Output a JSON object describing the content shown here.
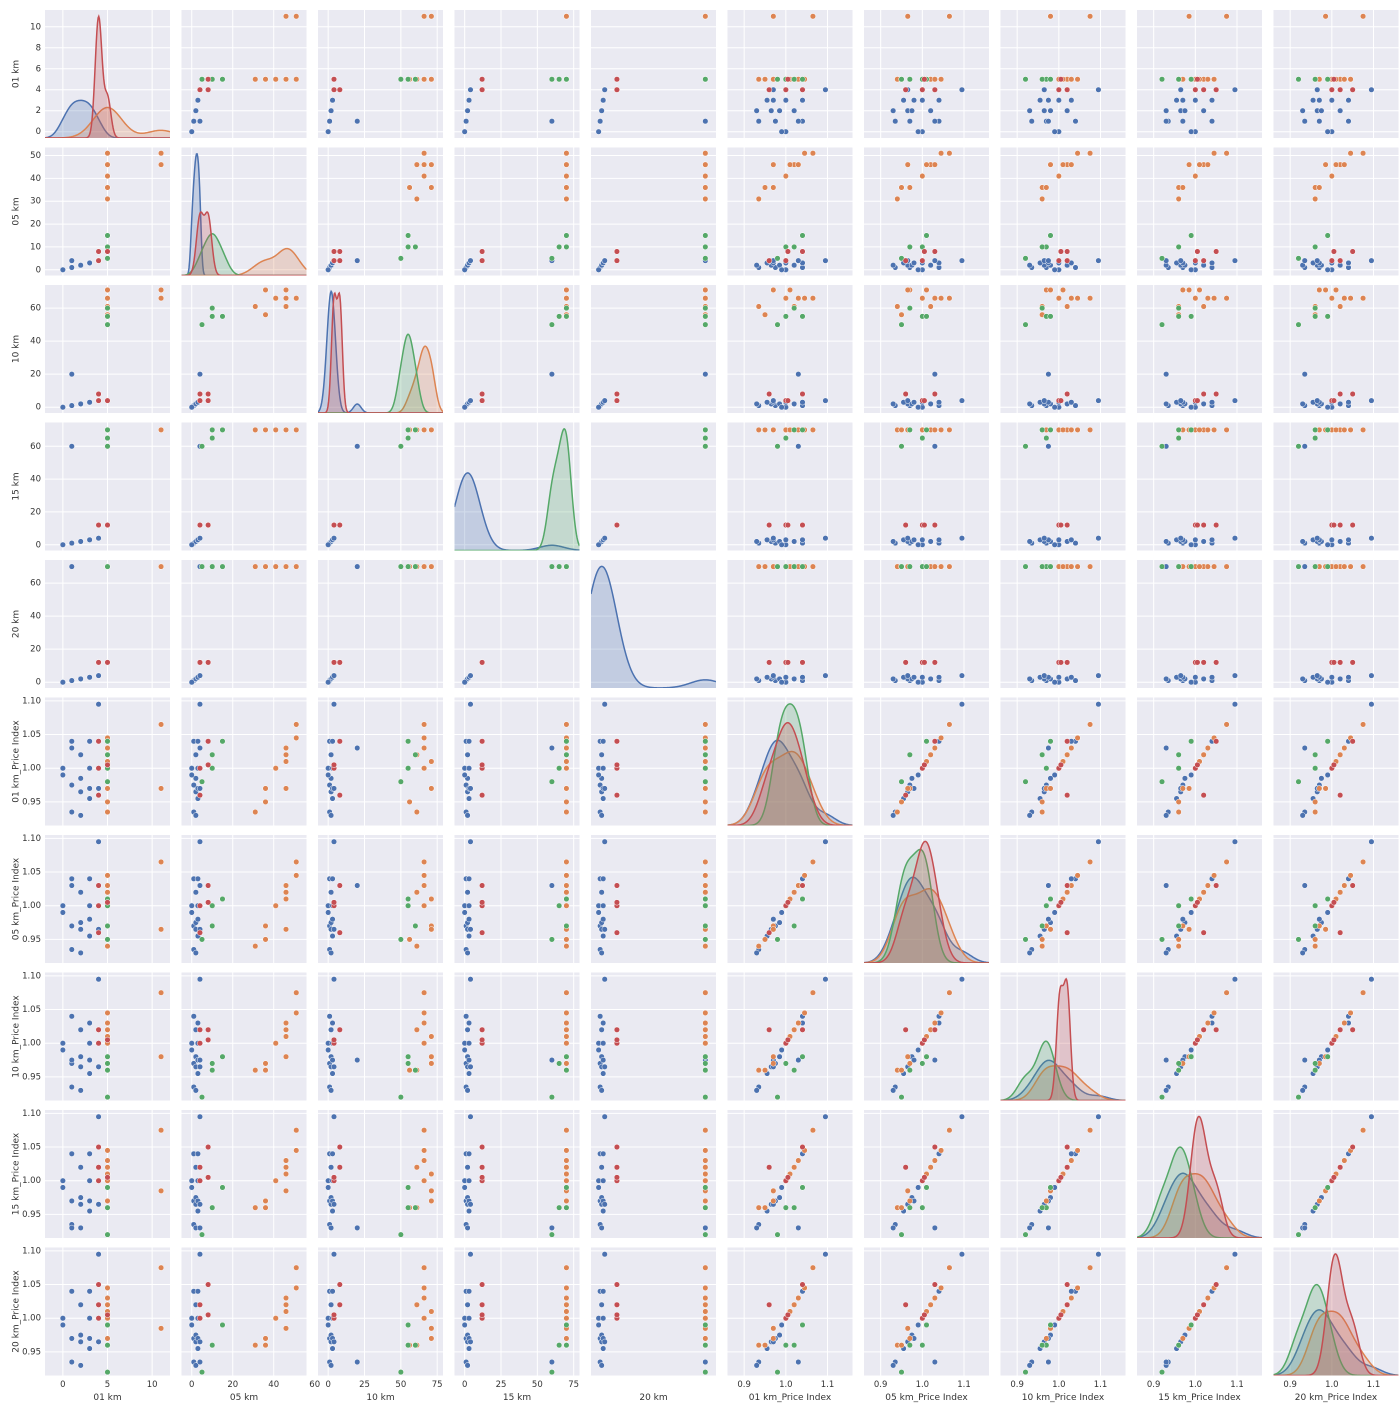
{
  "chart_data": {
    "type": "pairplot",
    "grid": true,
    "variables": [
      {
        "label": "01 km",
        "xlim": [
          -2,
          12
        ],
        "xticks": [
          0,
          5,
          10
        ],
        "ylim": [
          -0.6,
          11.6
        ],
        "yticks": [
          0,
          2,
          4,
          6,
          8,
          10
        ]
      },
      {
        "label": "05 km",
        "xlim": [
          -5,
          56
        ],
        "xticks": [
          0,
          20,
          40,
          60
        ],
        "ylim": [
          -2.5,
          53.5
        ],
        "yticks": [
          0,
          10,
          20,
          30,
          40,
          50
        ]
      },
      {
        "label": "10 km",
        "xlim": [
          -7,
          79
        ],
        "xticks": [
          0,
          25,
          50,
          75
        ],
        "ylim": [
          -3.5,
          74
        ],
        "yticks": [
          0,
          20,
          40,
          60
        ]
      },
      {
        "label": "15 km",
        "xlim": [
          -7,
          79
        ],
        "xticks": [
          0,
          25,
          50,
          75
        ],
        "ylim": [
          -3.5,
          74.5
        ],
        "yticks": [
          0,
          20,
          40,
          60
        ]
      },
      {
        "label": "20 km",
        "xlim": [
          -5,
          77
        ],
        "ylim": [
          -3.5,
          74
        ],
        "yticks": [
          0,
          20,
          40,
          60
        ]
      },
      {
        "label": "01 km_Price Index",
        "xlim": [
          0.86,
          1.16
        ],
        "xticks": [
          0.9,
          {
            "value": 1,
            "label": "1.0"
          },
          1.1
        ],
        "ylim": [
          0.915,
          1.105
        ],
        "yticks": [
          0.95,
          {
            "value": 1,
            "label": "1.00"
          },
          1.05,
          {
            "value": 1.1,
            "label": "1.10"
          }
        ]
      },
      {
        "label": "05 km_Price Index",
        "xlim": [
          0.86,
          1.16
        ],
        "xticks": [
          0.9,
          {
            "value": 1,
            "label": "1.0"
          },
          1.1
        ],
        "ylim": [
          0.915,
          1.105
        ],
        "yticks": [
          0.95,
          {
            "value": 1,
            "label": "1.00"
          },
          1.05,
          {
            "value": 1.1,
            "label": "1.10"
          }
        ]
      },
      {
        "label": "10 km_Price Index",
        "xlim": [
          0.86,
          1.16
        ],
        "xticks": [
          0.9,
          {
            "value": 1,
            "label": "1.0"
          },
          1.1
        ],
        "ylim": [
          0.915,
          1.105
        ],
        "yticks": [
          0.95,
          {
            "value": 1,
            "label": "1.00"
          },
          1.05,
          {
            "value": 1.1,
            "label": "1.10"
          }
        ]
      },
      {
        "label": "15 km_Price Index",
        "xlim": [
          0.86,
          1.16
        ],
        "xticks": [
          0.9,
          {
            "value": 1,
            "label": "1.0"
          },
          1.1
        ],
        "ylim": [
          0.915,
          1.105
        ],
        "yticks": [
          0.95,
          {
            "value": 1,
            "label": "1.00"
          },
          1.05,
          {
            "value": 1.1,
            "label": "1.10"
          }
        ]
      },
      {
        "label": "20 km_Price Index",
        "xlim": [
          0.86,
          1.16
        ],
        "xticks": [
          0.9,
          {
            "value": 1,
            "label": "1.0"
          },
          1.1
        ],
        "ylim": [
          0.915,
          1.105
        ],
        "yticks": [
          0.95,
          {
            "value": 1,
            "label": "1.00"
          },
          1.05,
          {
            "value": 1.1,
            "label": "1.10"
          }
        ]
      }
    ],
    "series": [
      {
        "color": "#4c72b0",
        "rows": [
          [
            0,
            0,
            0,
            0,
            0,
            1.0,
            1.0,
            1.0,
            1.0,
            1.0
          ],
          [
            1,
            1,
            1,
            1,
            1,
            0.975,
            0.97,
            0.97,
            0.97,
            0.97
          ],
          [
            1,
            1,
            1,
            1,
            1,
            1.04,
            1.04,
            1.04,
            1.04,
            1.04
          ],
          [
            1,
            1,
            1,
            1,
            1,
            0.935,
            0.935,
            0.935,
            0.935,
            0.935
          ],
          [
            2,
            2,
            2,
            2,
            2,
            0.965,
            0.965,
            0.965,
            0.965,
            0.965
          ],
          [
            2,
            2,
            2,
            2,
            2,
            1.02,
            1.02,
            1.02,
            1.02,
            1.02
          ],
          [
            2,
            2,
            2,
            2,
            2,
            0.985,
            0.975,
            0.98,
            0.975,
            0.975
          ],
          [
            2,
            2,
            2,
            2,
            2,
            0.93,
            0.93,
            0.93,
            0.93,
            0.93
          ],
          [
            3,
            3,
            3,
            3,
            3,
            0.97,
            0.98,
            0.975,
            0.97,
            0.97
          ],
          [
            3,
            3,
            3,
            3,
            3,
            1.04,
            1.04,
            1.03,
            1.04,
            1.04
          ],
          [
            3,
            3,
            3,
            3,
            3,
            0.955,
            0.955,
            0.955,
            0.955,
            0.955
          ],
          [
            3,
            3,
            3,
            3,
            3,
            1.0,
            1.0,
            1.0,
            1.0,
            1.0
          ],
          [
            4,
            4,
            4,
            4,
            4,
            1.095,
            1.095,
            1.095,
            1.095,
            1.095
          ],
          [
            4,
            4,
            4,
            4,
            4,
            0.97,
            0.965,
            0.965,
            0.965,
            0.965
          ],
          [
            0,
            0,
            0,
            0,
            0,
            0.99,
            0.99,
            0.99,
            0.99,
            0.99
          ],
          [
            1,
            4,
            20,
            60,
            70,
            1.03,
            1.03,
            0.975,
            0.93,
            0.935
          ]
        ]
      },
      {
        "color": "#dd8452",
        "rows": [
          [
            5,
            31,
            61,
            70,
            70,
            0.935,
            0.94,
            0.96,
            0.96,
            0.96
          ],
          [
            5,
            36,
            56,
            70,
            70,
            0.95,
            0.95,
            0.96,
            0.96,
            0.96
          ],
          [
            5,
            41,
            66,
            70,
            70,
            1.0,
            1.0,
            1.0,
            1.0,
            1.0
          ],
          [
            5,
            46,
            61,
            70,
            70,
            1.02,
            1.02,
            1.02,
            1.02,
            1.02
          ],
          [
            5,
            46,
            66,
            70,
            70,
            1.03,
            1.03,
            1.03,
            1.03,
            1.03
          ],
          [
            5,
            46,
            71,
            70,
            70,
            1.01,
            1.01,
            1.01,
            1.01,
            1.01
          ],
          [
            5,
            51,
            66,
            70,
            70,
            1.045,
            1.045,
            1.045,
            1.045,
            1.045
          ],
          [
            5,
            36,
            71,
            70,
            70,
            0.97,
            0.97,
            0.97,
            0.97,
            0.97
          ],
          [
            11,
            51,
            66,
            70,
            70,
            1.065,
            1.065,
            1.075,
            1.075,
            1.075
          ],
          [
            11,
            46,
            71,
            70,
            70,
            0.97,
            0.965,
            0.98,
            0.985,
            0.985
          ]
        ]
      },
      {
        "color": "#55a868",
        "rows": [
          [
            5,
            5,
            50,
            60,
            70,
            0.98,
            0.95,
            0.92,
            0.92,
            0.92
          ],
          [
            5,
            10,
            55,
            65,
            70,
            1.0,
            1.0,
            0.97,
            0.96,
            0.96
          ],
          [
            5,
            15,
            55,
            70,
            70,
            1.04,
            1.01,
            0.98,
            0.99,
            0.99
          ],
          [
            5,
            10,
            60,
            70,
            70,
            1.02,
            0.97,
            0.96,
            0.96,
            0.96
          ]
        ]
      },
      {
        "color": "#c44e52",
        "rows": [
          [
            4,
            8,
            8,
            12,
            12,
            1.04,
            1.03,
            1.02,
            1.05,
            1.05
          ],
          [
            4,
            4,
            4,
            12,
            12,
            1.0,
            1.0,
            1.0,
            1.0,
            1.0
          ],
          [
            5,
            8,
            4,
            12,
            12,
            1.005,
            1.005,
            1.005,
            1.005,
            1.005
          ],
          [
            4,
            4,
            8,
            12,
            12,
            0.96,
            0.96,
            1.02,
            1.02,
            1.02
          ]
        ]
      }
    ]
  }
}
